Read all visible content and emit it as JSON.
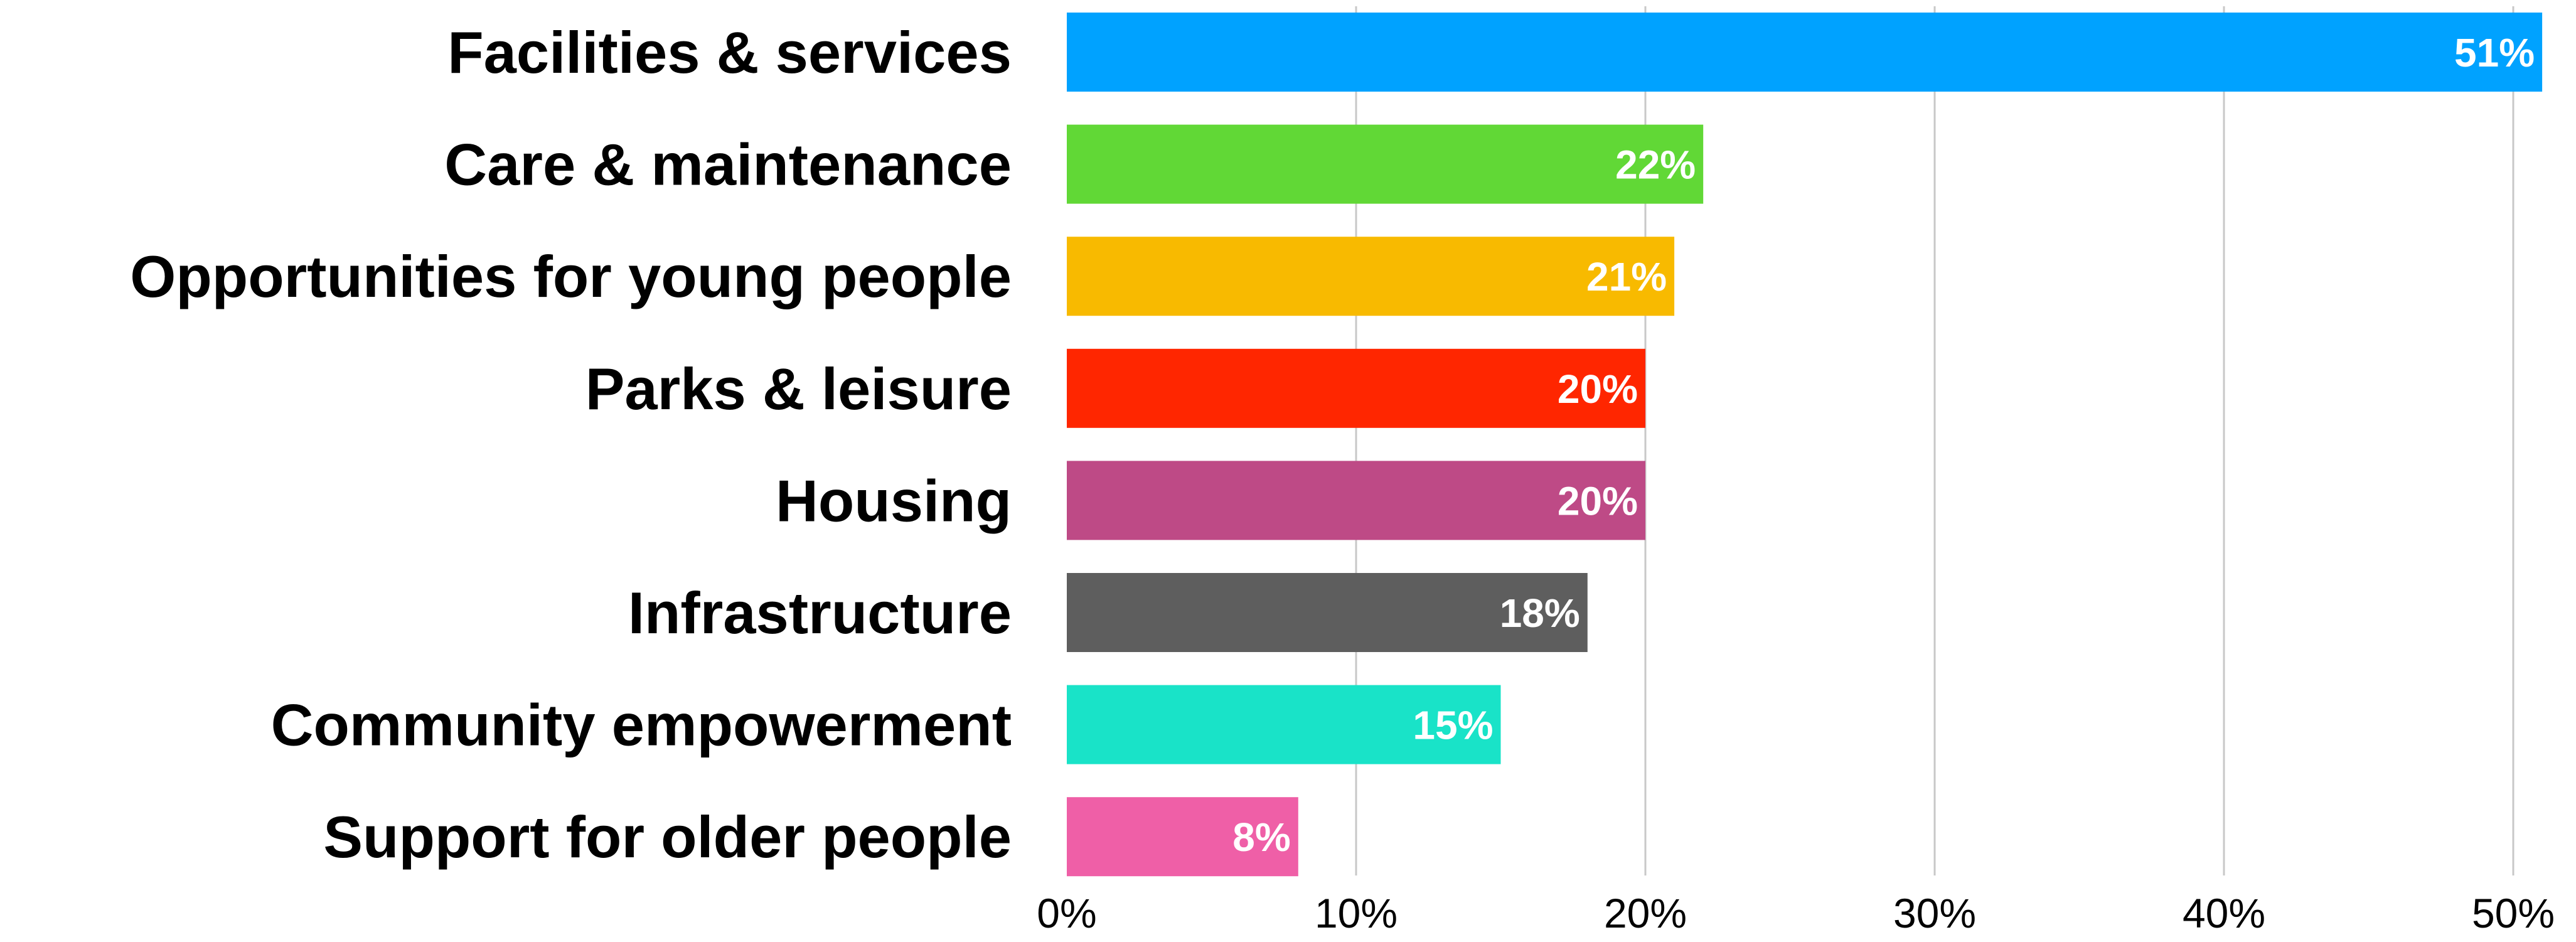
{
  "chart_data": {
    "type": "bar",
    "orientation": "horizontal",
    "categories": [
      "Facilities & services",
      "Care & maintenance",
      "Opportunities for young people",
      "Parks & leisure",
      "Housing",
      "Infrastructure",
      "Community empowerment",
      "Support for older people"
    ],
    "values": [
      51,
      22,
      21,
      20,
      20,
      18,
      15,
      8
    ],
    "value_labels": [
      "51%",
      "22%",
      "21%",
      "20%",
      "20%",
      "18%",
      "15%",
      "8%"
    ],
    "colors": [
      "#00A2FF",
      "#61D836",
      "#F8BA00",
      "#FF2600",
      "#BE4A86",
      "#5E5E5E",
      "#19E3C8",
      "#EF5FA7"
    ],
    "xlim": [
      0,
      50
    ],
    "xticks": [
      0,
      10,
      20,
      30,
      40,
      50
    ],
    "xtick_labels": [
      "0%",
      "10%",
      "20%",
      "30%",
      "40%",
      "50%"
    ],
    "grid": true,
    "title": "",
    "xlabel": "",
    "ylabel": "",
    "legend": "none"
  }
}
